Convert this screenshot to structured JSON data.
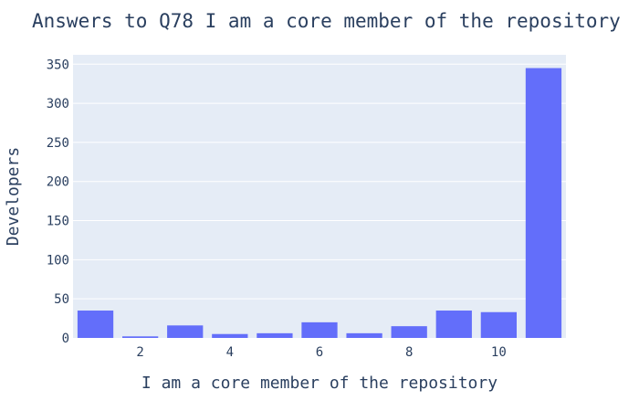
{
  "chart_data": {
    "type": "bar",
    "title": "Answers to Q78 I am a core member of the repository",
    "xlabel": "I am a core member of the repository",
    "ylabel": "Developers",
    "x": [
      1,
      2,
      3,
      4,
      5,
      6,
      7,
      8,
      9,
      10,
      11
    ],
    "values": [
      35,
      2,
      16,
      5,
      6,
      20,
      6,
      15,
      35,
      33,
      345
    ],
    "xlim": [
      0.5,
      11.5
    ],
    "ylim": [
      0,
      362
    ],
    "x_ticks": [
      2,
      4,
      6,
      8,
      10
    ],
    "y_ticks": [
      0,
      50,
      100,
      150,
      200,
      250,
      300,
      350
    ],
    "grid": true,
    "colors": {
      "bar": "#636efa",
      "plot_bg": "#e5ecf6",
      "grid": "#ffffff",
      "text": "#2a3f5f"
    }
  }
}
